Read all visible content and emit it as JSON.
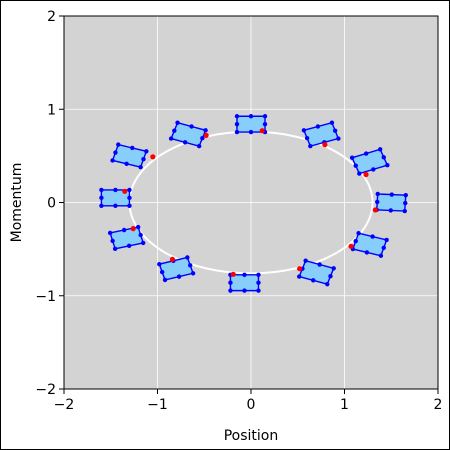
{
  "chart_data": {
    "type": "scatter",
    "title": "",
    "xlabel": "Position",
    "ylabel": "Momentum",
    "xlim": [
      -2,
      2
    ],
    "ylim": [
      -2,
      2
    ],
    "xticks": [
      -2,
      -1,
      0,
      1,
      2
    ],
    "yticks": [
      -2,
      -1,
      0,
      1,
      2
    ],
    "xtick_labels": [
      "−2",
      "−1",
      "0",
      "1",
      "2"
    ],
    "ytick_labels": [
      "−2",
      "−1",
      "0",
      "1",
      "2"
    ],
    "grid": true,
    "background": "#d3d3d3",
    "orbit": {
      "type": "ellipse",
      "center": [
        0,
        0
      ],
      "semi_x": 1.3,
      "semi_y": 0.76,
      "color": "#ffffff"
    },
    "phase_cells": {
      "count": 12,
      "fill": "#87cefa",
      "edge": "#0000ff",
      "marker_color": "#ff0000",
      "cells": [
        {
          "x": 1.5,
          "y": 0.0,
          "r": 0.07
        },
        {
          "x": 1.27,
          "y": 0.44,
          "r": -0.5
        },
        {
          "x": 0.75,
          "y": 0.73,
          "r": -0.45
        },
        {
          "x": 0.0,
          "y": 0.84,
          "r": 0.0
        },
        {
          "x": -0.67,
          "y": 0.73,
          "r": 0.45
        },
        {
          "x": -1.3,
          "y": 0.5,
          "r": 0.4
        },
        {
          "x": -1.45,
          "y": 0.05,
          "r": 0.0
        },
        {
          "x": -1.33,
          "y": -0.38,
          "r": -0.35
        },
        {
          "x": -0.8,
          "y": -0.71,
          "r": -0.4
        },
        {
          "x": -0.07,
          "y": -0.86,
          "r": 0.0
        },
        {
          "x": 0.7,
          "y": -0.75,
          "r": 0.45
        },
        {
          "x": 1.27,
          "y": -0.45,
          "r": 0.4
        }
      ],
      "markers": [
        [
          1.33,
          -0.08
        ],
        [
          1.23,
          0.3
        ],
        [
          0.79,
          0.62
        ],
        [
          0.12,
          0.77
        ],
        [
          -0.48,
          0.72
        ],
        [
          -1.05,
          0.49
        ],
        [
          -1.35,
          0.12
        ],
        [
          -1.26,
          -0.28
        ],
        [
          -0.84,
          -0.61
        ],
        [
          -0.19,
          -0.77
        ],
        [
          0.52,
          -0.71
        ],
        [
          1.07,
          -0.47
        ]
      ]
    }
  }
}
